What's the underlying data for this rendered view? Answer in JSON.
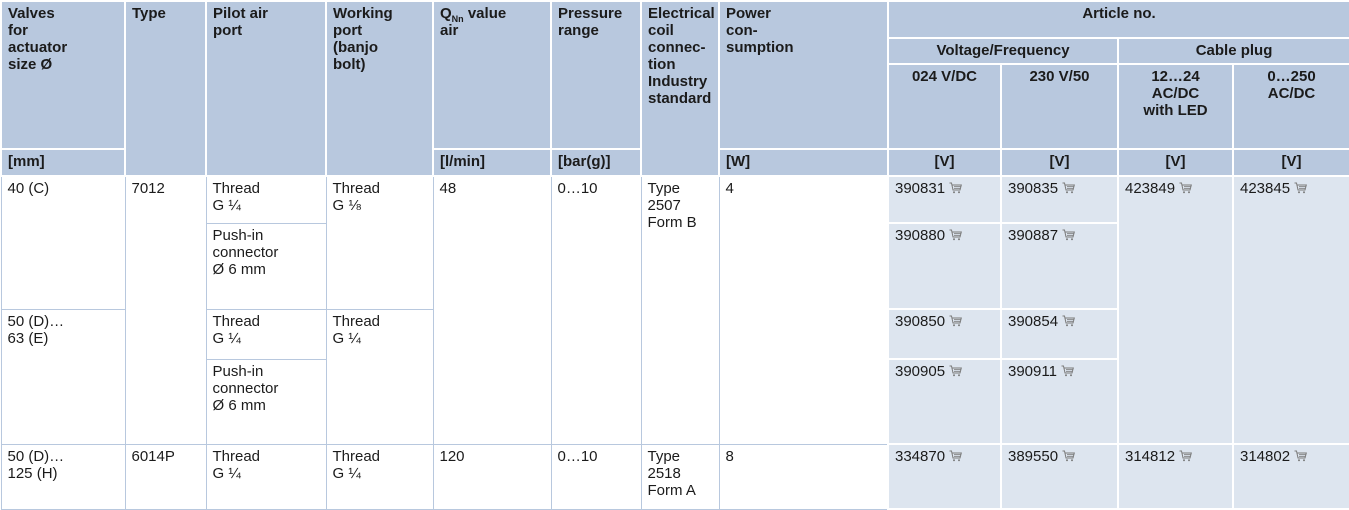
{
  "table": {
    "header": {
      "valves": "Valves\nfor\nactuator\nsize Ø",
      "type": "Type",
      "pilot": "Pilot air\nport",
      "working": "Working\nport\n(banjo\nbolt)",
      "q_symbol": "Q",
      "q_sub": "Nn",
      "q_rest": " value\nair",
      "pressure": "Pressure\nrange",
      "coil": "Electrical\ncoil\nconnec-\ntion\nIndustry\nstandard",
      "power": "Power\ncon-\nsumption",
      "article": "Article no.",
      "voltage_frequency": "Voltage/Frequency",
      "cable_plug": "Cable plug",
      "sub": [
        "024 V/DC",
        "230 V/50",
        "12…24\nAC/DC\nwith LED",
        "0…250\nAC/DC"
      ]
    },
    "units": [
      "[mm]",
      "[l/min]",
      "[bar(g)]",
      "[W]",
      "[V]",
      "[V]",
      "[V]",
      "[V]"
    ],
    "rows": [
      [
        "40 (C)",
        "7012",
        "Thread\nG ¼",
        "Thread\nG ⅛",
        "48",
        "0…10",
        "Type 2507\nForm B",
        "4",
        "390831",
        "390835",
        "423849",
        "423845"
      ],
      [
        "Push-in\nconnector\nØ 6 mm",
        "390880",
        "390887"
      ],
      [
        "50 (D)…\n63 (E)",
        "Thread\nG ¼",
        "Thread\nG ¼",
        "390850",
        "390854"
      ],
      [
        "Push-in\nconnector\nØ 6 mm",
        "390905",
        "390911"
      ],
      [
        "50 (D)…\n125 (H)",
        "6014P",
        "Thread\nG ¼",
        "Thread\nG ¼",
        "120",
        "0…10",
        "Type 2518\nForm A",
        "8",
        "334870",
        "389550",
        "314812",
        "314802"
      ]
    ]
  }
}
